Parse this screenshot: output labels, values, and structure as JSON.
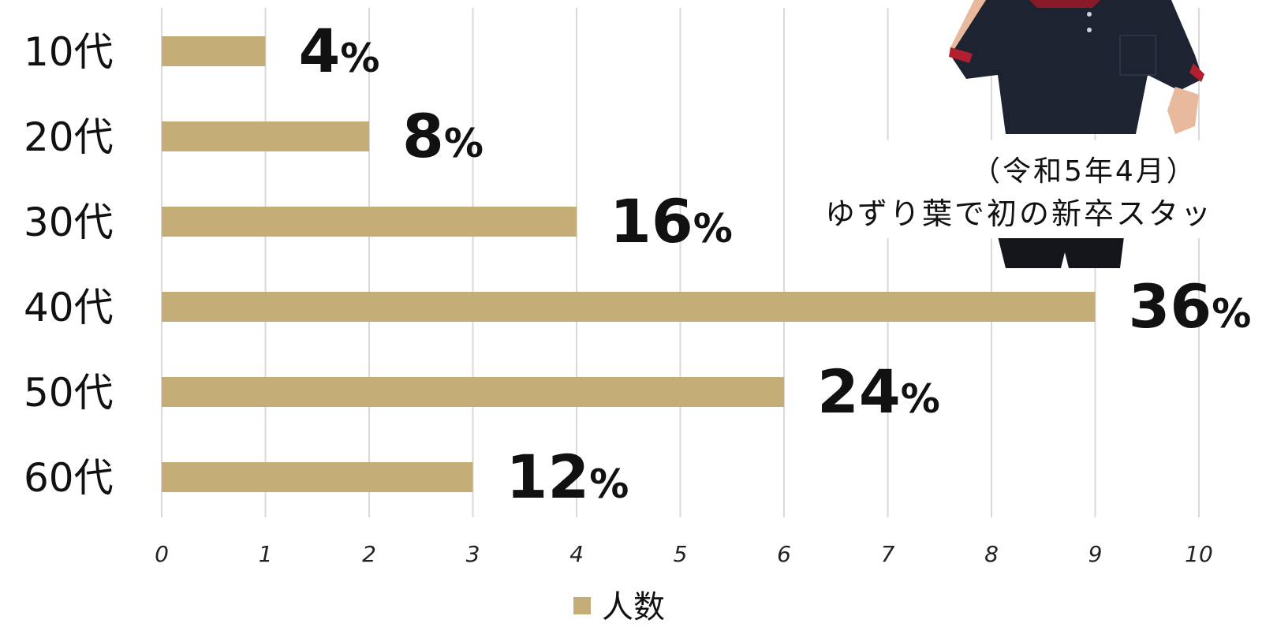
{
  "chart_data": {
    "type": "bar",
    "orientation": "horizontal",
    "categories": [
      "10代",
      "20代",
      "30代",
      "40代",
      "50代",
      "60代"
    ],
    "series": [
      {
        "name": "人数",
        "values": [
          1,
          2,
          4,
          9,
          6,
          3
        ],
        "color": "#c4ad76"
      }
    ],
    "data_labels": [
      {
        "number": "4",
        "unit": "%"
      },
      {
        "number": "8",
        "unit": "%"
      },
      {
        "number": "16",
        "unit": "%"
      },
      {
        "number": "36",
        "unit": "%"
      },
      {
        "number": "24",
        "unit": "%"
      },
      {
        "number": "12",
        "unit": "%"
      }
    ],
    "x_ticks": [
      "0",
      "1",
      "2",
      "3",
      "4",
      "5",
      "6",
      "7",
      "8",
      "9",
      "10"
    ],
    "xlim": [
      0,
      10
    ],
    "grid": "vertical",
    "legend": {
      "position": "bottom",
      "label": "人数"
    },
    "xlabel": "",
    "ylabel": ""
  },
  "photo": {
    "caption_line1": "（令和5年4月）",
    "caption_line2": "ゆずり葉で初の新卒スタッ"
  },
  "colors": {
    "bar": "#c4ad76",
    "grid": "#d9d9d9",
    "shirt": "#1d2330",
    "text": "#111111"
  }
}
